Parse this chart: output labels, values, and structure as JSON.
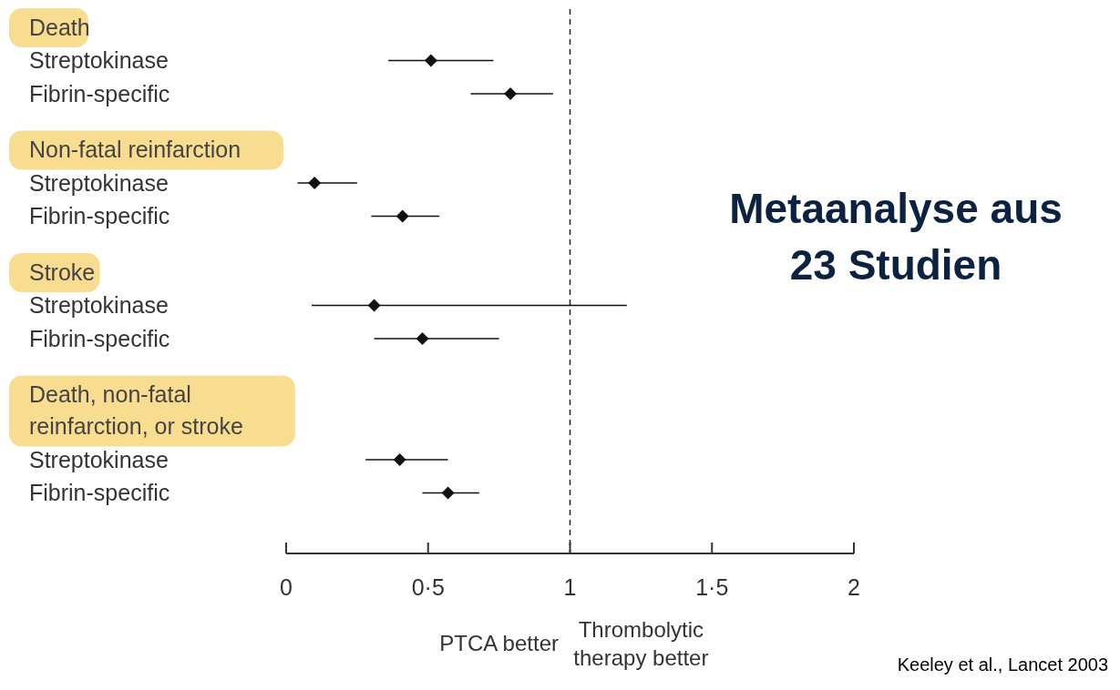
{
  "chart_data": {
    "type": "scatter",
    "orientation": "horizontal",
    "title": "Metaanalyse aus 23 Studien",
    "categories": [
      "Death",
      "Streptokinase",
      "Fibrin-specific",
      "Non-fatal reinfarction",
      "Streptokinase",
      "Fibrin-specific",
      "Stroke",
      "Streptokinase",
      "Fibrin-specific",
      "Death, non-fatal\nreinfarction, or stroke",
      "Streptokinase",
      "Fibrin-specific"
    ],
    "values": [
      null,
      0.51,
      0.79,
      null,
      0.1,
      0.41,
      null,
      0.31,
      0.48,
      null,
      0.4,
      0.57
    ],
    "errors": [
      null,
      [
        0.36,
        0.73
      ],
      [
        0.65,
        0.94
      ],
      null,
      [
        0.04,
        0.25
      ],
      [
        0.3,
        0.54
      ],
      null,
      [
        0.09,
        1.2
      ],
      [
        0.31,
        0.75
      ],
      null,
      [
        0.28,
        0.57
      ],
      [
        0.48,
        0.68
      ]
    ],
    "color": "#111111",
    "marker": "diamond",
    "xlim": [
      0,
      2
    ],
    "xticks": [
      0,
      {
        "value": 0.5,
        "label": "0·5"
      },
      1,
      {
        "value": 1.5,
        "label": "1·5"
      },
      2
    ],
    "ref_lines": [
      {
        "axis": "x",
        "value": 1,
        "line_style": "dashed",
        "color": "#222222"
      }
    ],
    "annotations": [
      "PTCA better",
      "Thrombolytic\ntherapy better",
      "Keeley et al., Lancet 2003"
    ],
    "grid": false
  }
}
